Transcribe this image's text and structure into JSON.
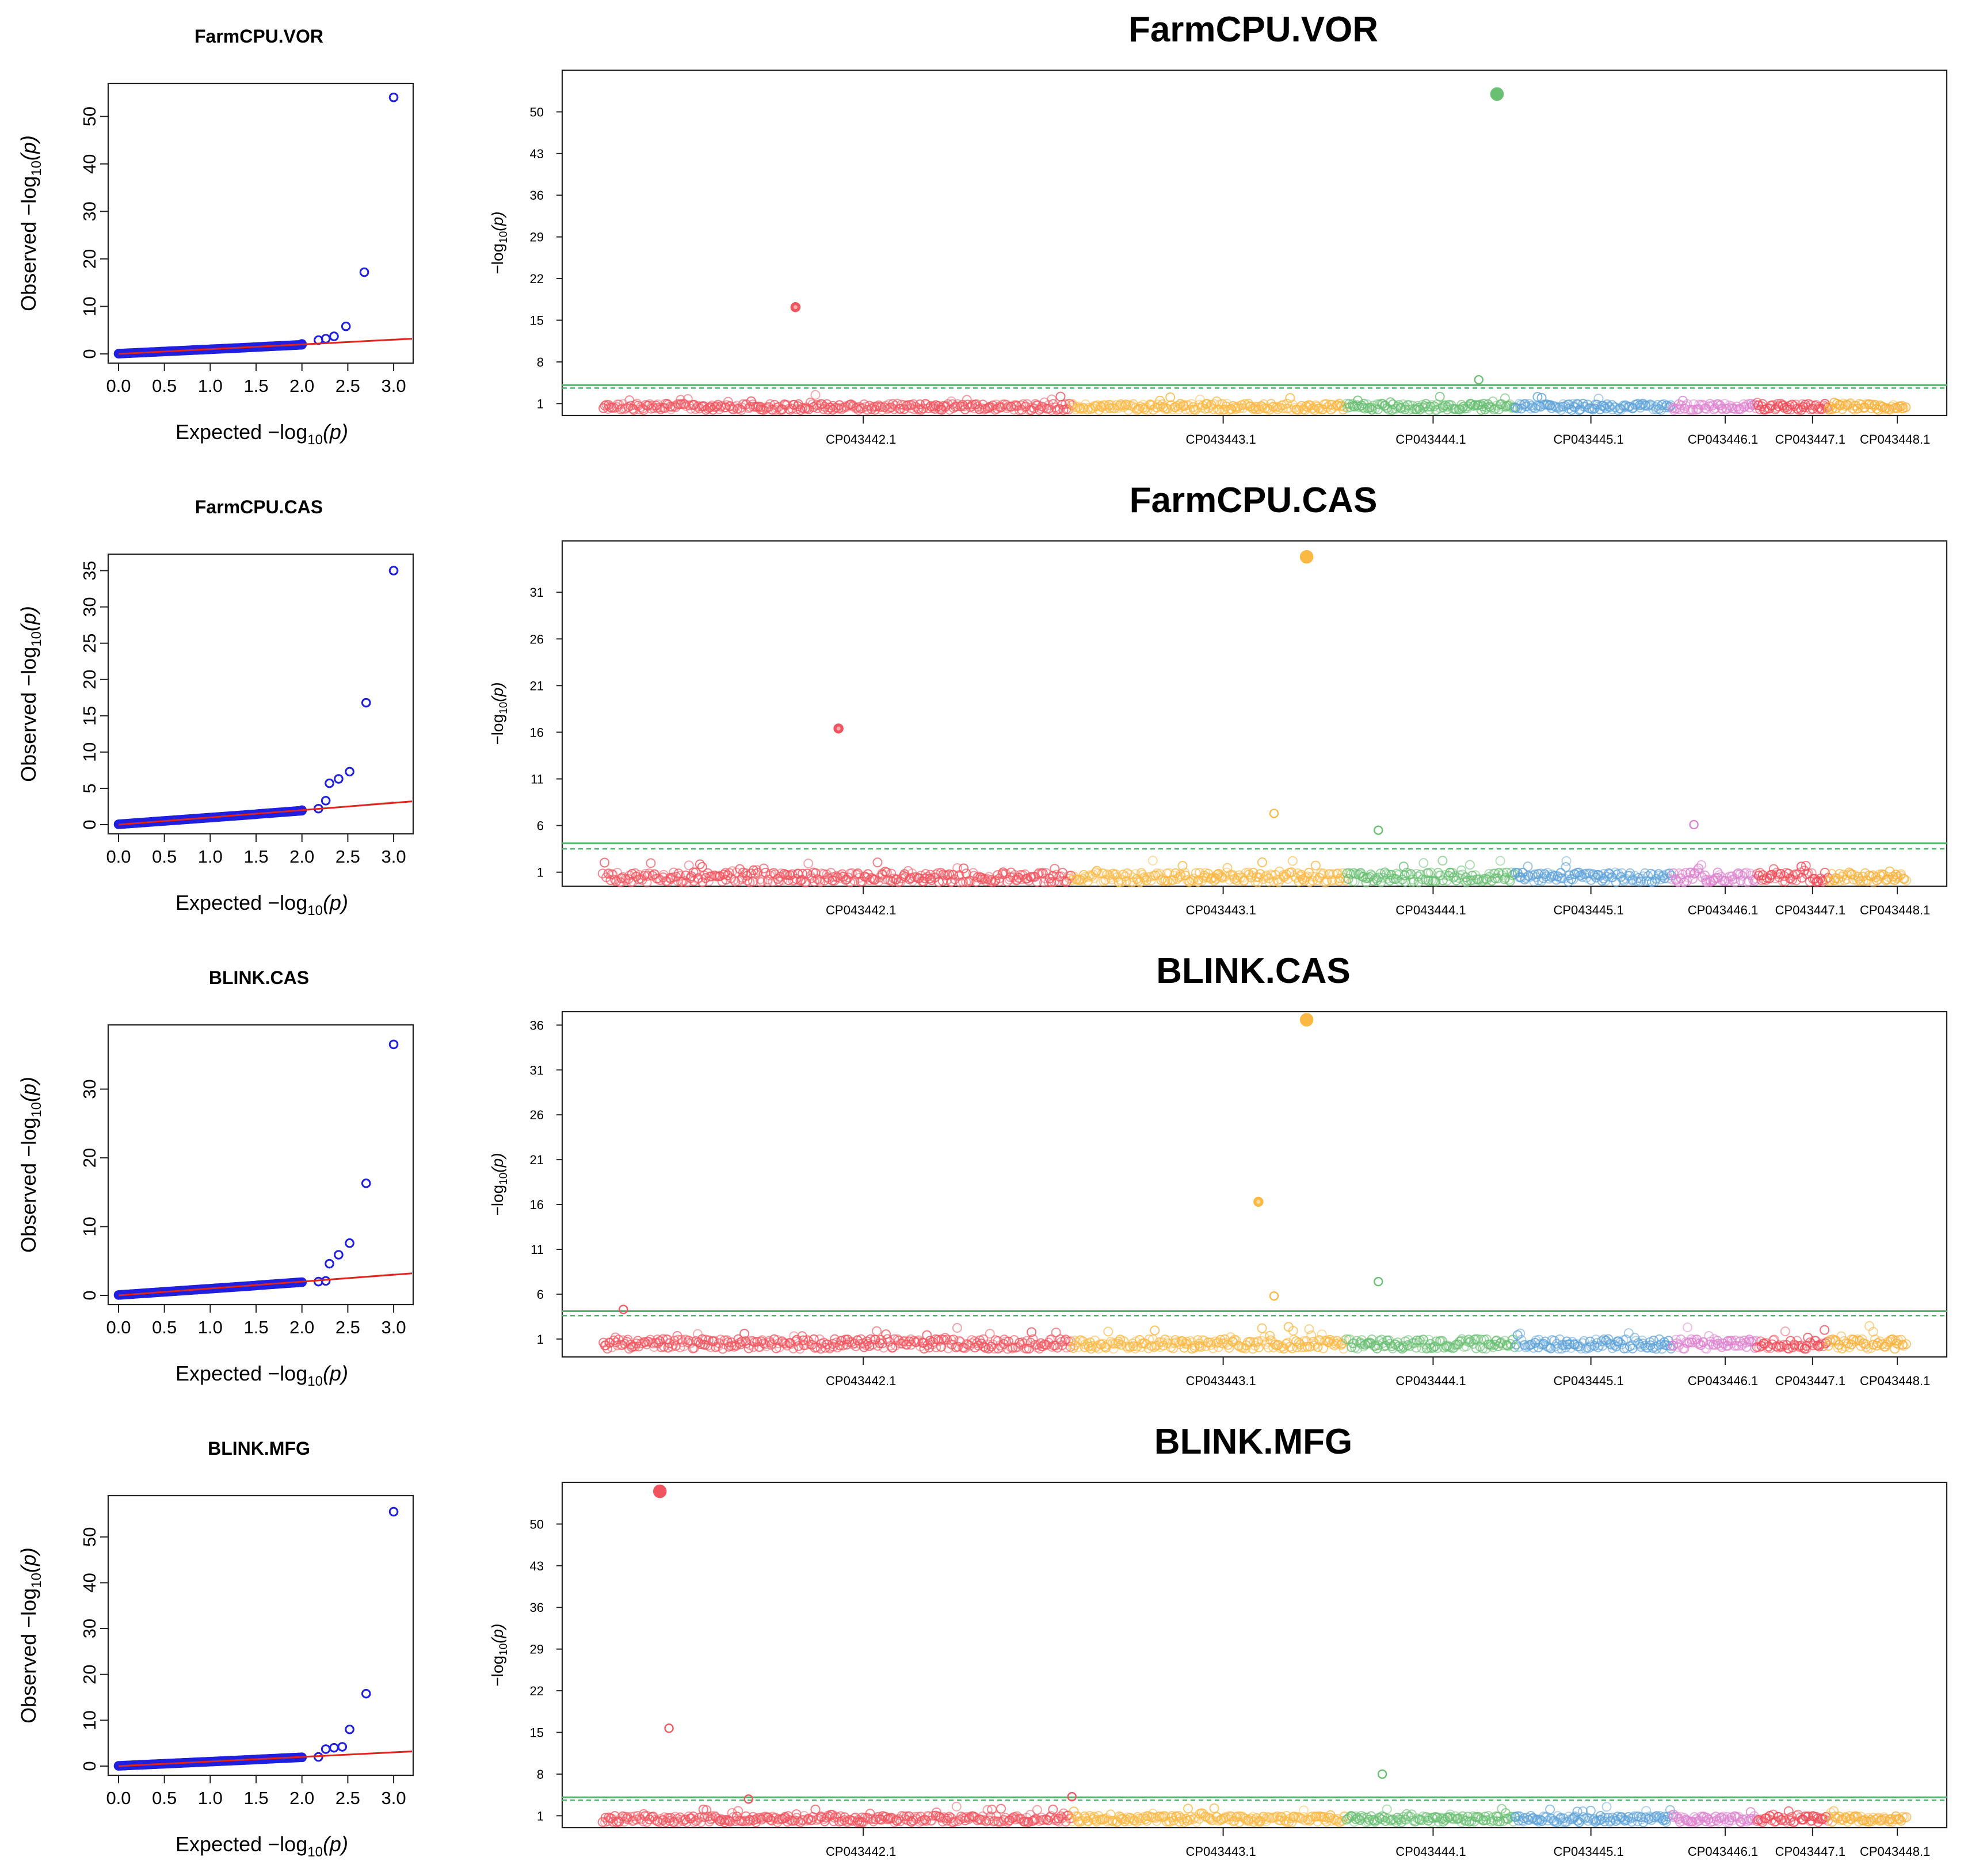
{
  "chart_data": [
    {
      "type": "scatter",
      "id": "vor",
      "title": "FarmCPU.VOR",
      "qq": {
        "title": "FarmCPU.VOR",
        "xlabel": "Expected",
        "ylabel": "Observed",
        "xlim": [
          0,
          3.1
        ],
        "ylim": [
          0,
          55
        ],
        "xticks": [
          0.0,
          0.5,
          1.0,
          1.5,
          2.0,
          2.5,
          3.0
        ],
        "yticks": [
          0,
          10,
          20,
          30,
          40,
          50
        ],
        "tail_points": [
          [
            2.0,
            2.1
          ],
          [
            2.18,
            2.9
          ],
          [
            2.26,
            3.2
          ],
          [
            2.35,
            3.7
          ],
          [
            2.48,
            5.8
          ],
          [
            2.68,
            17.2
          ],
          [
            3.0,
            54
          ]
        ]
      },
      "manhattan": {
        "title": "FarmCPU.VOR",
        "ylabel": "-log10(p)",
        "yticks": [
          1,
          8,
          15,
          22,
          29,
          36,
          43,
          50
        ],
        "ylim": [
          -1,
          57
        ],
        "threshold_solid": 4.1,
        "threshold_dashed": 3.6,
        "highlights": [
          {
            "pos": 0.148,
            "value": 17.2,
            "chrom": "CP043442.1",
            "size": "medium"
          },
          {
            "pos": 0.686,
            "value": 53.0,
            "chrom": "CP043444.1",
            "size": "large"
          },
          {
            "pos": 0.672,
            "value": 5.0,
            "chrom": "CP043444.1",
            "size": "small",
            "open": true
          }
        ]
      }
    },
    {
      "type": "scatter",
      "id": "cas1",
      "title": "FarmCPU.CAS",
      "qq": {
        "title": "FarmCPU.CAS",
        "xlabel": "Expected",
        "ylabel": "Observed",
        "xlim": [
          0,
          3.1
        ],
        "ylim": [
          0,
          36
        ],
        "xticks": [
          0.0,
          0.5,
          1.0,
          1.5,
          2.0,
          2.5,
          3.0
        ],
        "yticks": [
          0,
          5,
          10,
          15,
          20,
          25,
          30,
          35
        ],
        "tail_points": [
          [
            2.0,
            2.0
          ],
          [
            2.18,
            2.2
          ],
          [
            2.26,
            3.3
          ],
          [
            2.3,
            5.7
          ],
          [
            2.4,
            6.3
          ],
          [
            2.52,
            7.3
          ],
          [
            2.7,
            16.8
          ],
          [
            3.0,
            35
          ]
        ]
      },
      "manhattan": {
        "title": "FarmCPU.CAS",
        "ylabel": "-log10(p)",
        "yticks": [
          1,
          6,
          11,
          16,
          21,
          26,
          31
        ],
        "ylim": [
          -0.5,
          36.5
        ],
        "threshold_solid": 4.1,
        "threshold_dashed": 3.5,
        "highlights": [
          {
            "pos": 0.181,
            "value": 16.4,
            "chrom": "CP043442.1",
            "size": "medium"
          },
          {
            "pos": 0.54,
            "value": 34.8,
            "chrom": "CP043443.1",
            "size": "large"
          },
          {
            "pos": 0.515,
            "value": 7.3,
            "chrom": "CP043443.1",
            "size": "small",
            "open": true
          },
          {
            "pos": 0.595,
            "value": 5.5,
            "chrom": "CP043444.1",
            "size": "small",
            "open": true
          },
          {
            "pos": 0.837,
            "value": 6.1,
            "chrom": "CP043446.1",
            "size": "small",
            "open": true
          }
        ]
      }
    },
    {
      "type": "scatter",
      "id": "cas2",
      "title": "BLINK.CAS",
      "qq": {
        "title": "BLINK.CAS",
        "xlabel": "Expected",
        "ylabel": "Observed",
        "xlim": [
          0,
          3.1
        ],
        "ylim": [
          0,
          38
        ],
        "xticks": [
          0.0,
          0.5,
          1.0,
          1.5,
          2.0,
          2.5,
          3.0
        ],
        "yticks": [
          0,
          10,
          20,
          30
        ],
        "tail_points": [
          [
            2.0,
            1.9
          ],
          [
            2.18,
            2.0
          ],
          [
            2.26,
            2.1
          ],
          [
            2.3,
            4.6
          ],
          [
            2.4,
            5.9
          ],
          [
            2.52,
            7.6
          ],
          [
            2.7,
            16.3
          ],
          [
            3.0,
            36.5
          ]
        ]
      },
      "manhattan": {
        "title": "BLINK.CAS",
        "ylabel": "-log10(p)",
        "yticks": [
          1,
          6,
          11,
          16,
          21,
          26,
          31,
          36
        ],
        "ylim": [
          -1,
          37.5
        ],
        "threshold_solid": 4.1,
        "threshold_dashed": 3.6,
        "highlights": [
          {
            "pos": 0.016,
            "value": 4.3,
            "chrom": "CP043442.1",
            "size": "small",
            "open": true
          },
          {
            "pos": 0.54,
            "value": 36.6,
            "chrom": "CP043443.1",
            "size": "large"
          },
          {
            "pos": 0.503,
            "value": 16.3,
            "chrom": "CP043443.1",
            "size": "medium"
          },
          {
            "pos": 0.515,
            "value": 5.8,
            "chrom": "CP043443.1",
            "size": "small",
            "open": true
          },
          {
            "pos": 0.595,
            "value": 7.4,
            "chrom": "CP043444.1",
            "size": "small",
            "open": true
          }
        ]
      }
    },
    {
      "type": "scatter",
      "id": "mfg",
      "title": "BLINK.MFG",
      "qq": {
        "title": "BLINK.MFG",
        "xlabel": "Expected",
        "ylabel": "Observed",
        "xlim": [
          0,
          3.1
        ],
        "ylim": [
          0,
          57
        ],
        "xticks": [
          0.0,
          0.5,
          1.0,
          1.5,
          2.0,
          2.5,
          3.0
        ],
        "yticks": [
          0,
          10,
          20,
          30,
          40,
          50
        ],
        "tail_points": [
          [
            2.0,
            1.9
          ],
          [
            2.18,
            2.0
          ],
          [
            2.26,
            3.7
          ],
          [
            2.35,
            4.0
          ],
          [
            2.44,
            4.2
          ],
          [
            2.52,
            8.0
          ],
          [
            2.7,
            15.8
          ],
          [
            3.0,
            55.5
          ]
        ]
      },
      "manhattan": {
        "title": "BLINK.MFG",
        "ylabel": "-log10(p)",
        "yticks": [
          1,
          8,
          15,
          22,
          29,
          36,
          43,
          50
        ],
        "ylim": [
          -1,
          57
        ],
        "threshold_solid": 4.1,
        "threshold_dashed": 3.6,
        "highlights": [
          {
            "pos": 0.044,
            "value": 55.5,
            "chrom": "CP043442.1",
            "size": "large"
          },
          {
            "pos": 0.051,
            "value": 15.7,
            "chrom": "CP043442.1",
            "size": "small",
            "open": true
          },
          {
            "pos": 0.112,
            "value": 3.8,
            "chrom": "CP043442.1",
            "size": "small",
            "open": true
          },
          {
            "pos": 0.36,
            "value": 4.2,
            "chrom": "CP043442.1",
            "size": "small",
            "open": true
          },
          {
            "pos": 0.598,
            "value": 8.0,
            "chrom": "CP043444.1",
            "size": "small",
            "open": true
          }
        ]
      }
    }
  ],
  "chromosomes": [
    {
      "name": "CP043442.1",
      "start": 0.0,
      "end": 0.36,
      "label_pos": 0.2,
      "color": "#f0545e"
    },
    {
      "name": "CP043443.1",
      "start": 0.36,
      "end": 0.57,
      "label_pos": 0.476,
      "color": "#fbb843"
    },
    {
      "name": "CP043444.1",
      "start": 0.57,
      "end": 0.7,
      "label_pos": 0.637,
      "color": "#69bf72"
    },
    {
      "name": "CP043445.1",
      "start": 0.7,
      "end": 0.82,
      "label_pos": 0.758,
      "color": "#5da2d8"
    },
    {
      "name": "CP043446.1",
      "start": 0.82,
      "end": 0.885,
      "label_pos": 0.861,
      "color": "#dd82cf"
    },
    {
      "name": "CP043447.1",
      "start": 0.885,
      "end": 0.94,
      "label_pos": 0.928,
      "color": "#ef4955"
    },
    {
      "name": "CP043448.1",
      "start": 0.94,
      "end": 1.0,
      "label_pos": 0.993,
      "color": "#f8b13a"
    }
  ],
  "qq_point_color": "#1f1fe0",
  "qq_line_color": "#e0241b",
  "threshold_color": "#4fb36b"
}
